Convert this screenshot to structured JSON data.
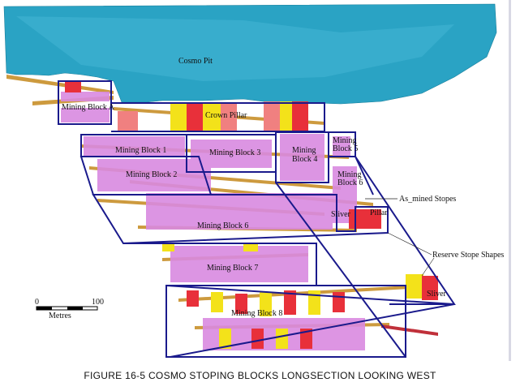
{
  "figure": {
    "caption": "FIGURE 16-5 COSMO STOPING BLOCKS LONGSECTION LOOKING WEST",
    "pit_label": "Cosmo Pit",
    "crown_pillar_label": "Crown Pillar",
    "blocks": {
      "a": "Mining Block A",
      "b1": "Mining Block 1",
      "b2": "Mining Block 2",
      "b3": "Mining Block 3",
      "b4_l1": "Mining",
      "b4_l2": "Block 4",
      "b5_l1": "Mining",
      "b5_l2": "Block 5",
      "b6s_l1": "Mining",
      "b6s_l2": "Block 6",
      "b6": "Mining Block 6",
      "b7": "Mining Block 7",
      "b8": "Mining Block 8",
      "sliver1": "Sliver",
      "sliver2": "Sliver",
      "pillar_small": "Pillar"
    },
    "annotations": {
      "as_mined": "As_mined Stopes",
      "reserve": "Reserve Stope Shapes"
    },
    "scale": {
      "start": "0",
      "end": "100",
      "unit": "Metres"
    },
    "colors": {
      "pit": "#2aa3c4",
      "block_outline": "#1a1a8c",
      "as_mined": "#d98ae0",
      "reserve_red": "#e8303a",
      "reserve_yellow": "#f3e21a",
      "drives": "#c8902a"
    }
  }
}
